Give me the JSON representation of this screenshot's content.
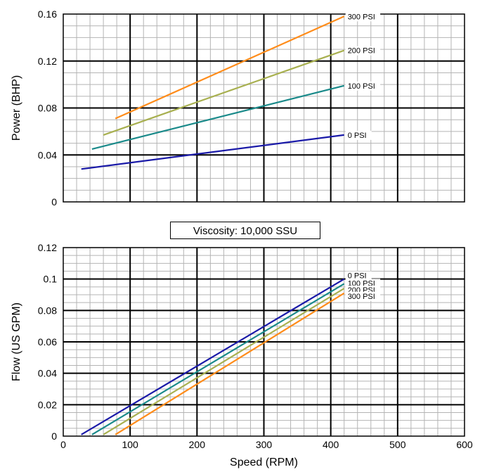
{
  "note": "Viscosity: 10,000 SSU",
  "chart_data": [
    {
      "type": "line",
      "title": "",
      "xlabel": "",
      "ylabel": "Power (BHP)",
      "xlim": [
        0,
        600
      ],
      "ylim": [
        0,
        0.16
      ],
      "grid": true,
      "x_ticks": [],
      "y_ticks": [
        "0",
        "0.04",
        "0.08",
        "0.12",
        "0.16"
      ],
      "series": [
        {
          "name": "300 PSI",
          "color": "#ff8c1a",
          "x": [
            78,
            420
          ],
          "y": [
            0.071,
            0.158
          ]
        },
        {
          "name": "200 PSI",
          "color": "#a8b050",
          "x": [
            60,
            420
          ],
          "y": [
            0.057,
            0.129
          ]
        },
        {
          "name": "100 PSI",
          "color": "#1a8a8a",
          "x": [
            43,
            420
          ],
          "y": [
            0.045,
            0.099
          ]
        },
        {
          "name": "0 PSI",
          "color": "#1a1aa8",
          "x": [
            27,
            420
          ],
          "y": [
            0.028,
            0.057
          ]
        }
      ]
    },
    {
      "type": "line",
      "title": "",
      "xlabel": "Speed (RPM)",
      "ylabel": "Flow (US GPM)",
      "xlim": [
        0,
        600
      ],
      "ylim": [
        0,
        0.12
      ],
      "grid": true,
      "x_ticks": [
        "0",
        "100",
        "200",
        "300",
        "400",
        "500",
        "600"
      ],
      "y_ticks": [
        "0",
        "0.02",
        "0.04",
        "0.06",
        "0.08",
        "0.1",
        "0.12"
      ],
      "series": [
        {
          "name": "0 PSI",
          "color": "#1a1aa8",
          "x": [
            27,
            420
          ],
          "y": [
            0.001,
            0.1
          ]
        },
        {
          "name": "100 PSI",
          "color": "#1a8a8a",
          "x": [
            43,
            420
          ],
          "y": [
            0.001,
            0.097
          ]
        },
        {
          "name": "200 PSI",
          "color": "#a8b050",
          "x": [
            60,
            420
          ],
          "y": [
            0.001,
            0.094
          ]
        },
        {
          "name": "300 PSI",
          "color": "#ff8c1a",
          "x": [
            78,
            420
          ],
          "y": [
            0.001,
            0.091
          ]
        }
      ]
    }
  ]
}
